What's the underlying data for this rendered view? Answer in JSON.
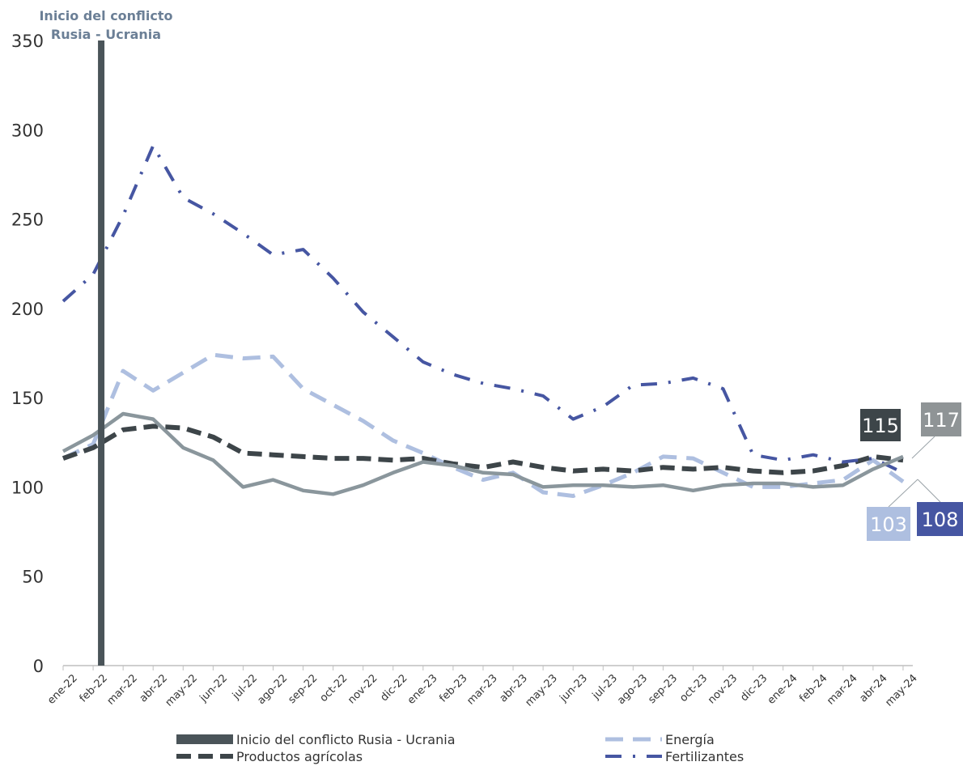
{
  "chart_data": {
    "type": "line",
    "title": "",
    "xlabel": "",
    "ylabel": "",
    "ylim": [
      0,
      350
    ],
    "yticks": [
      0,
      50,
      100,
      150,
      200,
      250,
      300,
      350
    ],
    "categories": [
      "ene-22",
      "feb-22",
      "mar-22",
      "abr-22",
      "may-22",
      "jun-22",
      "jul-22",
      "ago-22",
      "sep-22",
      "oct-22",
      "nov-22",
      "dic-22",
      "ene-23",
      "feb-23",
      "mar-23",
      "abr-23",
      "may-23",
      "jun-23",
      "jul-23",
      "ago-23",
      "sep-23",
      "oct-23",
      "nov-23",
      "dic-23",
      "ene-24",
      "feb-24",
      "mar-24",
      "abr-24",
      "may-24"
    ],
    "grid": false,
    "legend_position": "bottom",
    "event_marker": {
      "category": "feb-22",
      "label_line1": "Inicio del conflicto",
      "label_line2": "Rusia - Ucrania",
      "color": "#4a5459"
    },
    "series": [
      {
        "name": "Productos agrícolas",
        "color": "#3d4549",
        "dash": "dashed",
        "values": [
          116,
          122,
          132,
          134,
          133,
          128,
          119,
          118,
          117,
          116,
          116,
          115,
          116,
          113,
          111,
          114,
          111,
          109,
          110,
          109,
          111,
          110,
          111,
          109,
          108,
          109,
          112,
          117,
          115
        ],
        "end_label": "115",
        "end_label_bg": "#3d4549"
      },
      {
        "name": "Energía",
        "color": "#aebfe0",
        "dash": "dashed-light",
        "values": [
          116,
          124,
          165,
          154,
          164,
          174,
          172,
          173,
          155,
          146,
          137,
          126,
          119,
          111,
          104,
          108,
          97,
          95,
          101,
          108,
          117,
          116,
          108,
          100,
          100,
          102,
          104,
          115,
          103
        ],
        "end_label": "103",
        "end_label_bg": "#aebfe0"
      },
      {
        "name": "Fertilizantes",
        "color": "#4656a2",
        "dash": "dashdot",
        "values": [
          204,
          219,
          252,
          291,
          262,
          253,
          242,
          230,
          233,
          217,
          198,
          184,
          170,
          163,
          158,
          155,
          151,
          138,
          145,
          157,
          158,
          161,
          155,
          118,
          115,
          118,
          114,
          116,
          108
        ],
        "end_label": "108",
        "end_label_bg": "#4656a2"
      },
      {
        "name": "",
        "color": "#8a969c",
        "dash": "solid",
        "values": [
          120,
          129,
          141,
          138,
          122,
          115,
          100,
          104,
          98,
          96,
          101,
          108,
          114,
          112,
          108,
          107,
          100,
          101,
          101,
          100,
          101,
          98,
          101,
          102,
          102,
          100,
          101,
          110,
          117
        ],
        "end_label": "117",
        "end_label_bg": "#8f9496"
      }
    ],
    "legend": [
      {
        "label": "Inicio del conflicto Rusia - Ucrania",
        "kind": "bar",
        "color": "#4a5459"
      },
      {
        "label": "Energía",
        "kind": "dashed-light",
        "color": "#aebfe0"
      },
      {
        "label": "Productos agrícolas",
        "kind": "dashed",
        "color": "#3d4549"
      },
      {
        "label": "Fertilizantes",
        "kind": "dashdot",
        "color": "#4656a2"
      }
    ]
  }
}
